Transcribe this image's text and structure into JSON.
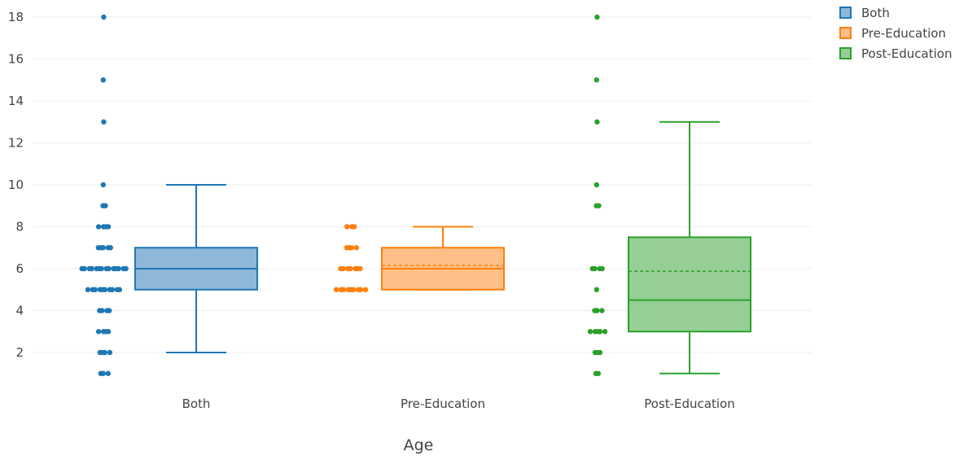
{
  "chart_data": {
    "type": "box",
    "xlabel": "Age",
    "ylabel": "",
    "ylim": [
      0,
      18.5
    ],
    "yticks": [
      2,
      4,
      6,
      8,
      10,
      12,
      14,
      16,
      18
    ],
    "grid": true,
    "legend_position": "top-right",
    "legend": [
      "Both",
      "Pre-Education",
      "Post-Education"
    ],
    "categories": [
      "Both",
      "Pre-Education",
      "Post-Education"
    ],
    "series": [
      {
        "name": "Both",
        "color": "#1f77b4",
        "fill": "#8fb7d9",
        "box": {
          "lower_whisker": 2,
          "q1": 5,
          "median": 6,
          "q3": 7,
          "upper_whisker": 10,
          "mean": 6.0
        },
        "points": [
          {
            "y": 18,
            "n": 1
          },
          {
            "y": 15,
            "n": 1
          },
          {
            "y": 13,
            "n": 1
          },
          {
            "y": 10,
            "n": 1
          },
          {
            "y": 9,
            "n": 2
          },
          {
            "y": 8,
            "n": 4
          },
          {
            "y": 7,
            "n": 5
          },
          {
            "y": 6,
            "n": 14
          },
          {
            "y": 5,
            "n": 10
          },
          {
            "y": 4,
            "n": 4
          },
          {
            "y": 3,
            "n": 4
          },
          {
            "y": 2,
            "n": 4
          },
          {
            "y": 1,
            "n": 3
          }
        ]
      },
      {
        "name": "Pre-Education",
        "color": "#ff7f0e",
        "fill": "#ffbf87",
        "box": {
          "lower_whisker": 5,
          "q1": 5,
          "median": 6,
          "q3": 7,
          "upper_whisker": 8,
          "mean": 6.15
        },
        "points": [
          {
            "y": 8,
            "n": 3
          },
          {
            "y": 7,
            "n": 4
          },
          {
            "y": 6,
            "n": 7
          },
          {
            "y": 5,
            "n": 9
          }
        ]
      },
      {
        "name": "Post-Education",
        "color": "#2ca02c",
        "fill": "#95cf95",
        "box": {
          "lower_whisker": 1,
          "q1": 3,
          "median": 4.5,
          "q3": 7.5,
          "upper_whisker": 13,
          "mean": 5.88
        },
        "points": [
          {
            "y": 18,
            "n": 1
          },
          {
            "y": 15,
            "n": 1
          },
          {
            "y": 13,
            "n": 1
          },
          {
            "y": 10,
            "n": 1
          },
          {
            "y": 9,
            "n": 2
          },
          {
            "y": 6,
            "n": 4
          },
          {
            "y": 5,
            "n": 1
          },
          {
            "y": 4,
            "n": 3
          },
          {
            "y": 3,
            "n": 5
          },
          {
            "y": 2,
            "n": 3
          },
          {
            "y": 1,
            "n": 2
          }
        ]
      }
    ]
  }
}
